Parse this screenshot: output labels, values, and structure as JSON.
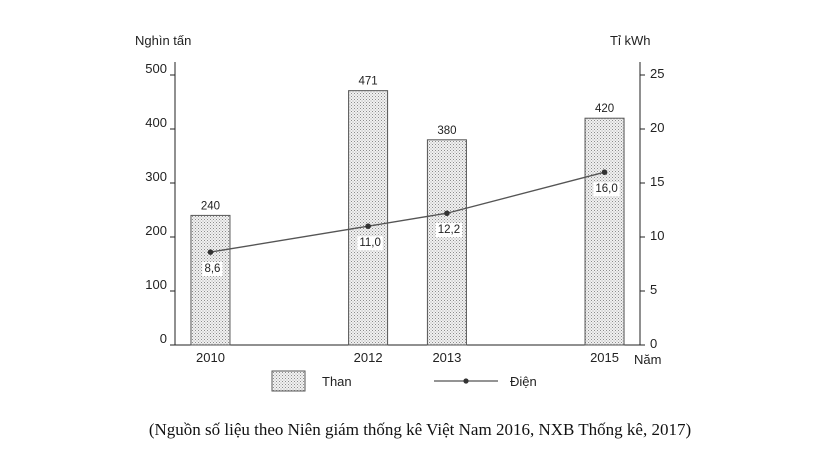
{
  "chart_data": {
    "type": "bar+line",
    "categories": [
      "2010",
      "2012",
      "2013",
      "2015"
    ],
    "x": [
      2010,
      2012,
      2013,
      2015
    ],
    "series": [
      {
        "name": "Than",
        "type": "bar",
        "axis": "left",
        "values": [
          240,
          471,
          380,
          420
        ],
        "labels": [
          "240",
          "471",
          "380",
          "420"
        ]
      },
      {
        "name": "Điện",
        "type": "line",
        "axis": "right",
        "values": [
          8.6,
          11.0,
          12.2,
          16.0
        ],
        "labels": [
          "8,6",
          "11,0",
          "12,2",
          "16,0"
        ]
      }
    ],
    "y_left": {
      "label": "Nghìn tấn",
      "range": [
        0,
        500
      ],
      "ticks": [
        "0",
        "100",
        "200",
        "300",
        "400",
        "500"
      ]
    },
    "y_right": {
      "label": "Tỉ kWh",
      "range": [
        0,
        25
      ],
      "ticks": [
        "0",
        "5",
        "10",
        "15",
        "20",
        "25"
      ]
    },
    "x_axis": {
      "label": "Năm"
    },
    "legend": {
      "placement": "bottom"
    },
    "grid": false
  },
  "source": "(Nguồn số liệu theo Niên giám thống kê Việt Nam 2016, NXB Thống kê, 2017)"
}
